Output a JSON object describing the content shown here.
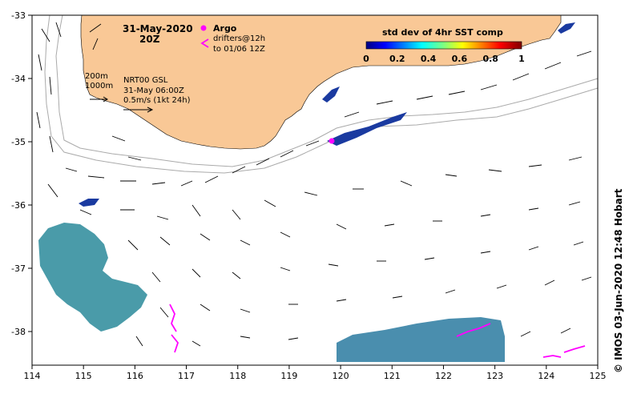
{
  "map": {
    "date_title": "31-May-2020",
    "time_title": "20Z",
    "argo_label": "Argo",
    "drifters_label_1": "drifters@12h",
    "drifters_label_2": "to 01/06 12Z",
    "depth_label_200": "200m",
    "depth_label_1000": "1000m",
    "product_label": "NRT00 GSL",
    "product_time": "31-May 06:00Z",
    "scale_label": "0.5m/s (1kt 24h)",
    "colorbar_title": "std dev of 4hr SST comp",
    "colorbar_ticks": [
      "0",
      "0.2",
      "0.4",
      "0.6",
      "0.8",
      "1"
    ],
    "credit": "© IMOS 03-Jun-2020 12:48 Hobart",
    "lon_ticks": [
      "114",
      "115",
      "116",
      "117",
      "118",
      "119",
      "120",
      "121",
      "122",
      "123",
      "124",
      "125"
    ],
    "lat_ticks": [
      "-33",
      "-34",
      "-35",
      "-36",
      "-37",
      "-38"
    ],
    "colors": {
      "land": "#f9c896",
      "argo": "#ff00ff",
      "drifter": "#ff00ff",
      "isobath": "#aaaaaa"
    }
  }
}
